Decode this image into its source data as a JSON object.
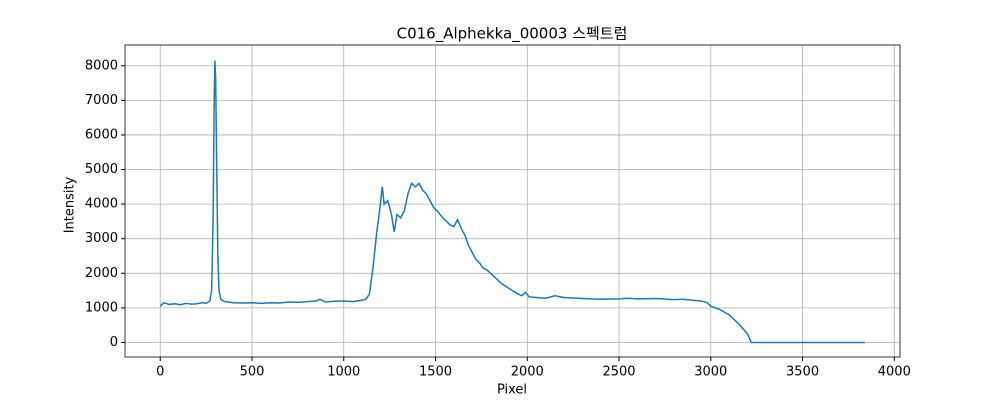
{
  "chart_data": {
    "type": "line",
    "title": "C016_Alphekka_00003 스펙트럼",
    "x_label": "Pixel",
    "y_label": "Intensity",
    "x": [
      0,
      20,
      50,
      80,
      110,
      140,
      170,
      200,
      230,
      250,
      270,
      280,
      288,
      294,
      298,
      302,
      308,
      314,
      320,
      330,
      350,
      400,
      450,
      500,
      550,
      600,
      650,
      700,
      750,
      800,
      850,
      870,
      900,
      950,
      1000,
      1050,
      1100,
      1120,
      1140,
      1160,
      1180,
      1195,
      1210,
      1220,
      1240,
      1260,
      1275,
      1290,
      1310,
      1330,
      1350,
      1370,
      1390,
      1410,
      1430,
      1450,
      1470,
      1490,
      1510,
      1540,
      1560,
      1580,
      1600,
      1620,
      1640,
      1660,
      1680,
      1700,
      1720,
      1740,
      1760,
      1780,
      1800,
      1830,
      1860,
      1890,
      1920,
      1950,
      1970,
      1990,
      2010,
      2050,
      2100,
      2150,
      2200,
      2300,
      2400,
      2500,
      2550,
      2600,
      2700,
      2800,
      2850,
      2900,
      2950,
      2980,
      3000,
      3050,
      3100,
      3150,
      3200,
      3220,
      3300,
      3500,
      3700,
      3839
    ],
    "series": [
      {
        "name": "Intensity",
        "color": "#1f77b4",
        "values": [
          1050,
          1150,
          1100,
          1120,
          1090,
          1130,
          1110,
          1120,
          1150,
          1130,
          1200,
          1500,
          3500,
          7000,
          8150,
          7600,
          5000,
          2500,
          1500,
          1250,
          1180,
          1150,
          1140,
          1150,
          1130,
          1150,
          1140,
          1170,
          1160,
          1180,
          1200,
          1250,
          1170,
          1190,
          1200,
          1180,
          1220,
          1250,
          1400,
          2200,
          3200,
          3800,
          4500,
          4000,
          4100,
          3700,
          3200,
          3700,
          3600,
          3800,
          4300,
          4600,
          4500,
          4600,
          4400,
          4300,
          4100,
          3900,
          3800,
          3600,
          3500,
          3400,
          3350,
          3550,
          3300,
          3100,
          2800,
          2600,
          2400,
          2300,
          2150,
          2100,
          2000,
          1850,
          1700,
          1600,
          1500,
          1400,
          1350,
          1450,
          1320,
          1300,
          1280,
          1350,
          1300,
          1270,
          1250,
          1260,
          1280,
          1260,
          1270,
          1240,
          1250,
          1220,
          1200,
          1150,
          1050,
          950,
          800,
          550,
          250,
          0,
          0,
          0,
          0,
          0
        ]
      }
    ],
    "xlim": [
      -192,
      4031
    ],
    "ylim": [
      -420,
      8600
    ],
    "xticks": [
      0,
      500,
      1000,
      1500,
      2000,
      2500,
      3000,
      3500,
      4000
    ],
    "yticks": [
      0,
      1000,
      2000,
      3000,
      4000,
      5000,
      6000,
      7000,
      8000
    ],
    "grid": true
  }
}
